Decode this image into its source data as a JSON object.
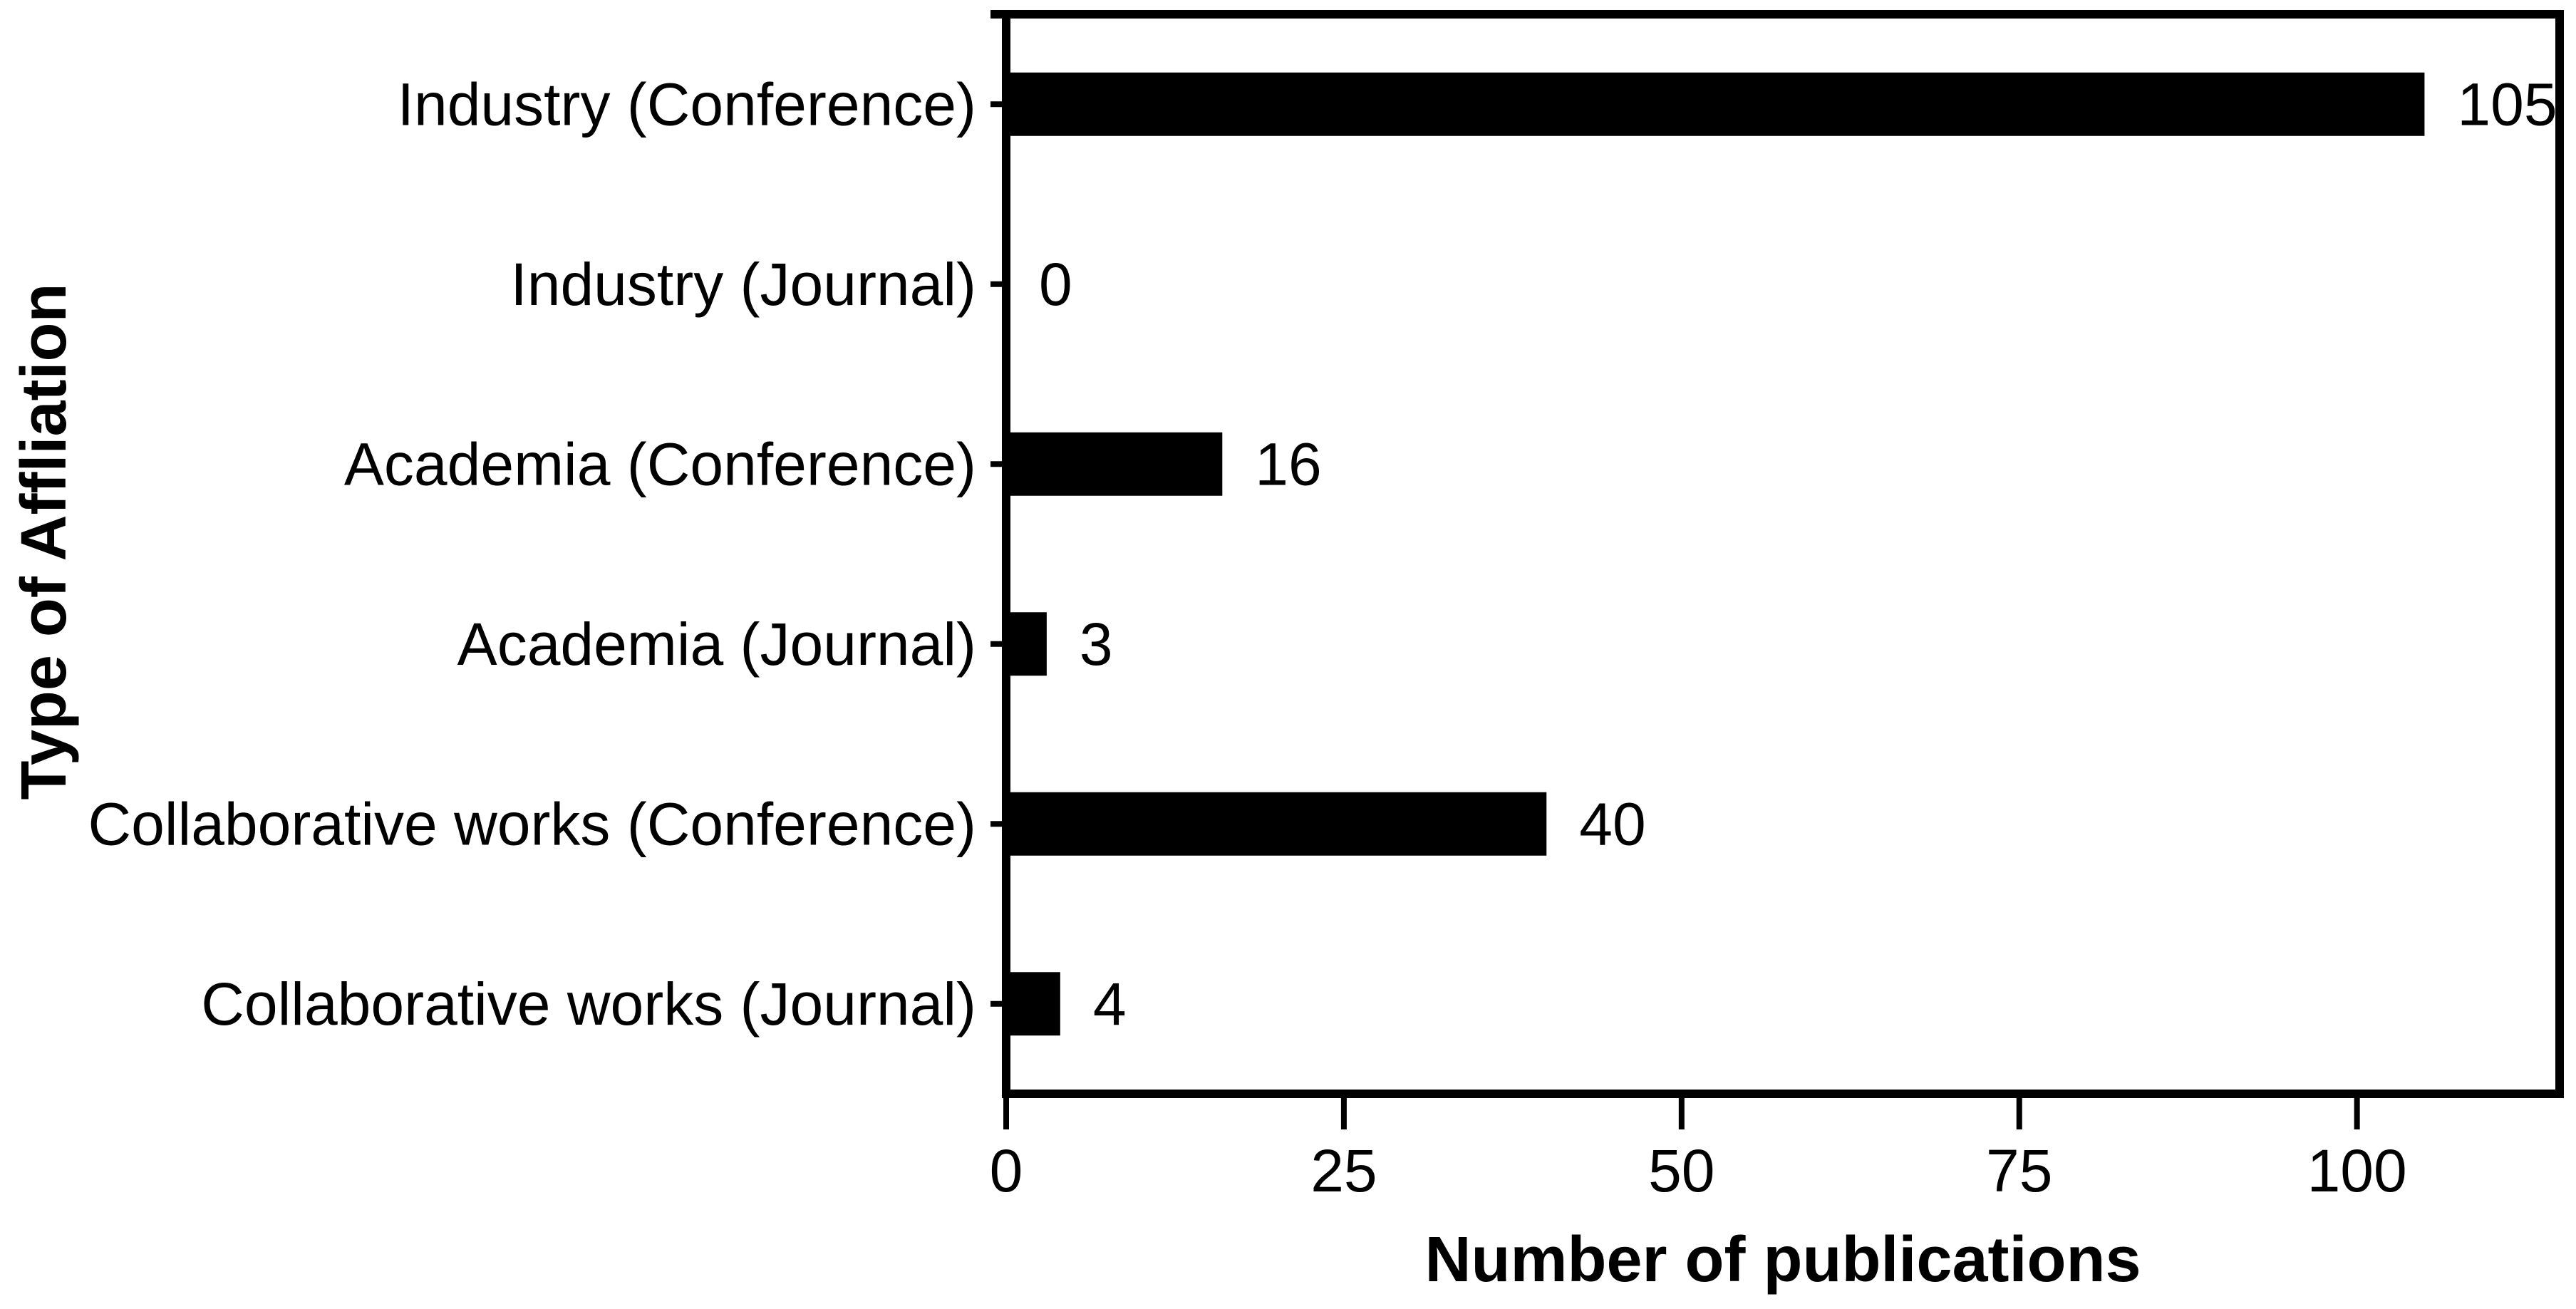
{
  "chart_data": {
    "type": "bar",
    "orientation": "horizontal",
    "title": "",
    "categories": [
      "Industry (Conference)",
      "Industry (Journal)",
      "Academia (Conference)",
      "Academia (Journal)",
      "Collaborative works (Conference)",
      "Collaborative works (Journal)"
    ],
    "values": [
      105,
      0,
      16,
      3,
      40,
      4
    ],
    "value_labels": [
      "105",
      "0",
      "16",
      "3",
      "40",
      "4"
    ],
    "xlabel": "Number of publications",
    "ylabel": "Type of Affliation",
    "xticks": [
      0,
      25,
      50,
      75,
      100
    ],
    "xtick_labels": [
      "0",
      "25",
      "50",
      "75",
      "100"
    ],
    "xlim": [
      0,
      115
    ],
    "grid": false,
    "legend": null,
    "frame": "box",
    "bar_color": "#000000",
    "axis_color": "#000000",
    "background_color": "#ffffff"
  }
}
